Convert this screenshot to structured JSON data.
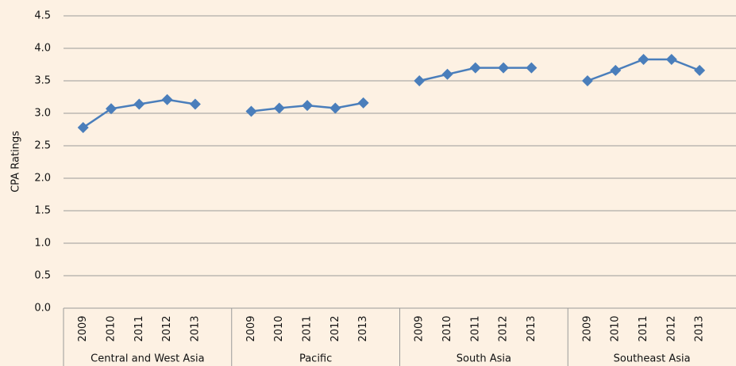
{
  "chart_data": {
    "type": "line",
    "y_label": "CPA Ratings",
    "color": "#4a7ebb",
    "groups": [
      {
        "name": "Central and West Asia",
        "categories": [
          "2009",
          "2010",
          "2011",
          "2012",
          "2013"
        ],
        "values": [
          2.78,
          3.07,
          3.14,
          3.21,
          3.14
        ]
      },
      {
        "name": "Pacific",
        "categories": [
          "2009",
          "2010",
          "2011",
          "2012",
          "2013"
        ],
        "values": [
          3.03,
          3.08,
          3.12,
          3.08,
          3.16
        ]
      },
      {
        "name": "South Asia",
        "categories": [
          "2009",
          "2010",
          "2011",
          "2012",
          "2013"
        ],
        "values": [
          3.5,
          3.6,
          3.7,
          3.7,
          3.7
        ]
      },
      {
        "name": "Southeast Asia",
        "categories": [
          "2009",
          "2010",
          "2011",
          "2012",
          "2013"
        ],
        "values": [
          3.5,
          3.66,
          3.83,
          3.83,
          3.66
        ]
      }
    ],
    "ylim": [
      0,
      4.5
    ],
    "yticks": [
      {
        "value": 0,
        "label": "0.0"
      },
      0.5,
      {
        "value": 1,
        "label": "1.0"
      },
      1.5,
      {
        "value": 2,
        "label": "2.0"
      },
      2.5,
      {
        "value": 3,
        "label": "3.0"
      },
      3.5,
      {
        "value": 4,
        "label": "4.0"
      },
      4.5
    ],
    "grid": true
  }
}
